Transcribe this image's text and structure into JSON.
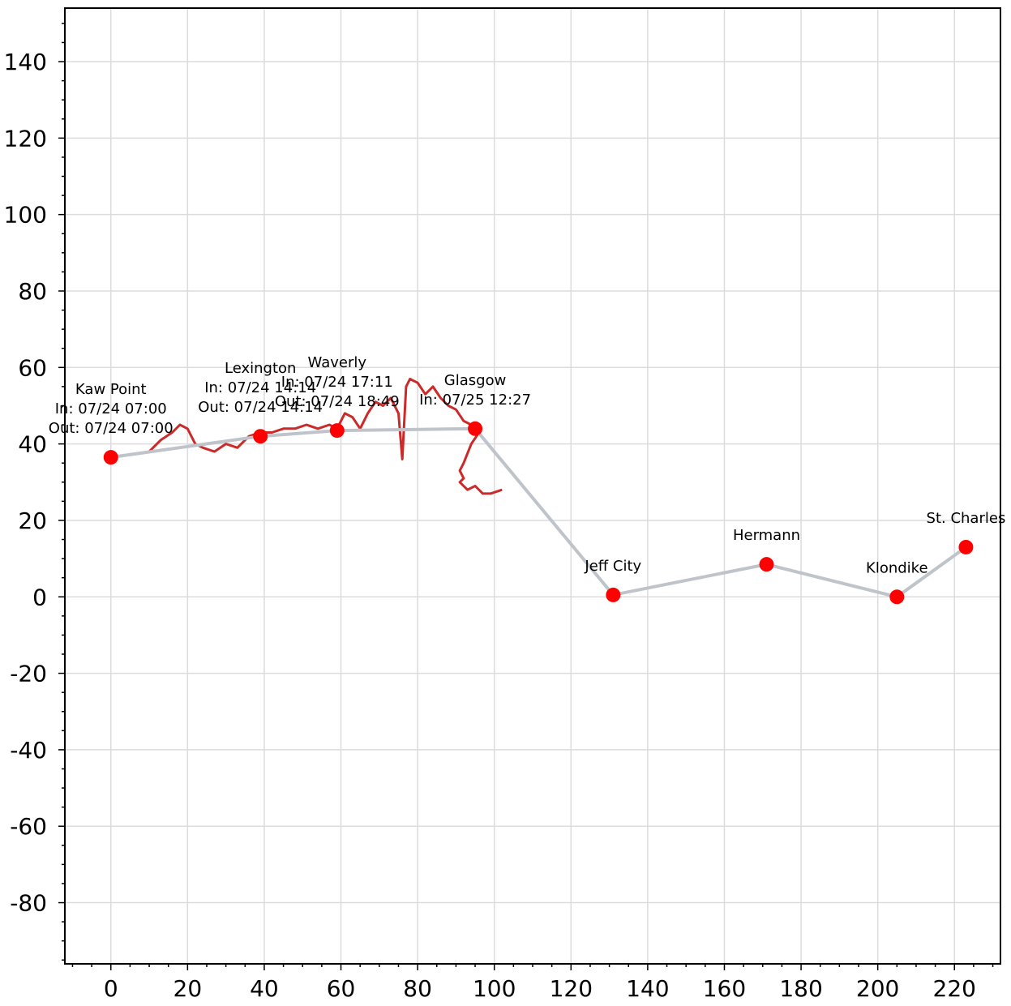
{
  "chart_data": {
    "type": "scatter",
    "title": "",
    "xlabel": "",
    "ylabel": "",
    "xlim": [
      -12,
      232
    ],
    "ylim": [
      -96,
      154
    ],
    "grid": true,
    "x_ticks": [
      0,
      20,
      40,
      60,
      80,
      100,
      120,
      140,
      160,
      180,
      200,
      220
    ],
    "y_ticks": [
      -80,
      -60,
      -40,
      -20,
      0,
      20,
      40,
      60,
      80,
      100,
      120,
      140
    ],
    "colors": {
      "route_line": "#bfc3ca",
      "points": "#ff0000",
      "river": "#cc2929",
      "grid": "#dcdcdc"
    },
    "series": [
      {
        "x": [
          0,
          39,
          59,
          95,
          131,
          171,
          205,
          223
        ],
        "y": [
          36.5,
          42,
          43.5,
          44,
          0.5,
          8.5,
          0,
          13
        ],
        "labels": [
          [
            "Kaw Point",
            "In: 07/24 07:00",
            "Out: 07/24 07:00"
          ],
          [
            "Lexington",
            "In: 07/24 14:14",
            "Out: 07/24 14:14"
          ],
          [
            "Waverly",
            "In: 07/24 17:11",
            "Out: 07/24 18:49"
          ],
          [
            "Glasgow",
            "In: 07/25 12:27"
          ],
          [
            "Jeff City"
          ],
          [
            "Hermann"
          ],
          [
            "Klondike"
          ],
          [
            "St. Charles"
          ]
        ]
      }
    ],
    "river_path": {
      "x": [
        10,
        13,
        16,
        18,
        20,
        22,
        24,
        27,
        30,
        33,
        36,
        39,
        42,
        45,
        48,
        51,
        54,
        57,
        59,
        61,
        63,
        65,
        67,
        69,
        71,
        73,
        75,
        76,
        77,
        78,
        80,
        82,
        84,
        86,
        88,
        90,
        92,
        94,
        96,
        94,
        92,
        91,
        92,
        91,
        93,
        95,
        97,
        99,
        102
      ],
      "y": [
        38,
        41,
        43,
        45,
        44,
        40,
        39,
        38,
        40,
        39,
        42,
        43,
        43,
        44,
        44,
        45,
        44,
        45,
        44,
        48,
        47,
        44,
        48,
        51,
        50,
        52,
        48,
        36,
        55,
        57,
        56,
        53,
        55,
        52,
        50,
        49,
        46,
        45,
        43,
        40,
        35,
        33,
        31,
        30,
        28,
        29,
        27,
        27,
        28
      ]
    }
  }
}
